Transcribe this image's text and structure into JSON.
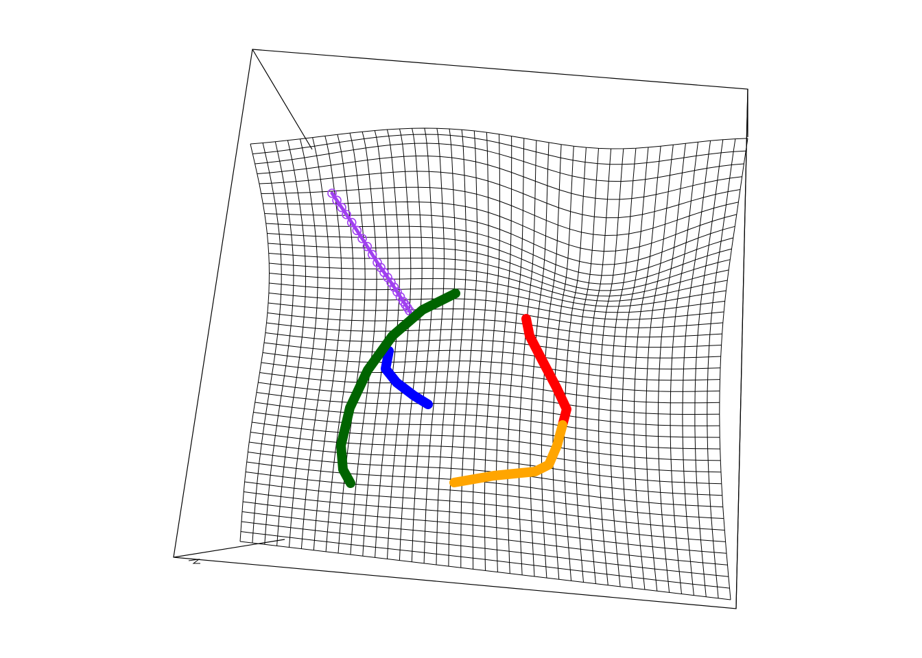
{
  "chart_data": {
    "type": "3d-surface-wireframe",
    "title": "",
    "xlabel": "",
    "ylabel": "",
    "zlabel": "",
    "mesh_color": "#000000",
    "background": "#ffffff",
    "paths": [
      {
        "color": "#a040f0",
        "style": "circles"
      },
      {
        "color": "#0000ff",
        "style": "thick-line"
      },
      {
        "color": "#006400",
        "style": "thick-line"
      },
      {
        "color": "#ff0000",
        "style": "thick-line"
      },
      {
        "color": "#ffa500",
        "style": "thick-line"
      }
    ]
  }
}
